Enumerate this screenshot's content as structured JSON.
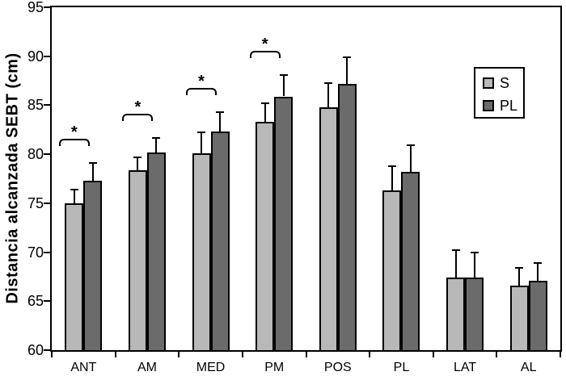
{
  "chart_data": {
    "type": "bar",
    "title": "",
    "xlabel": "",
    "ylabel": "Distancia alcanzada SEBT (cm)",
    "ylim": [
      60,
      95
    ],
    "yticks": [
      60,
      65,
      70,
      75,
      80,
      85,
      90,
      95
    ],
    "grid": false,
    "legend_position": "upper right",
    "categories": [
      "ANT",
      "AM",
      "MED",
      "PM",
      "POS",
      "PL",
      "LAT",
      "AL"
    ],
    "series": [
      {
        "name": "S",
        "color": "#b8b8b8",
        "values": [
          75.0,
          78.4,
          80.1,
          83.3,
          84.8,
          76.3,
          67.4,
          66.6
        ],
        "error_upper": [
          1.4,
          1.3,
          2.1,
          1.9,
          2.5,
          2.5,
          2.8,
          1.8
        ]
      },
      {
        "name": "PL",
        "color": "#6b6b6b",
        "values": [
          77.3,
          80.2,
          82.3,
          85.9,
          87.2,
          78.2,
          67.4,
          67.1
        ],
        "error_upper": [
          1.8,
          1.5,
          2.0,
          2.2,
          2.7,
          2.7,
          2.6,
          1.8
        ]
      }
    ],
    "significance": {
      "symbol": "*",
      "categories": [
        "ANT",
        "AM",
        "MED",
        "PM"
      ]
    }
  }
}
